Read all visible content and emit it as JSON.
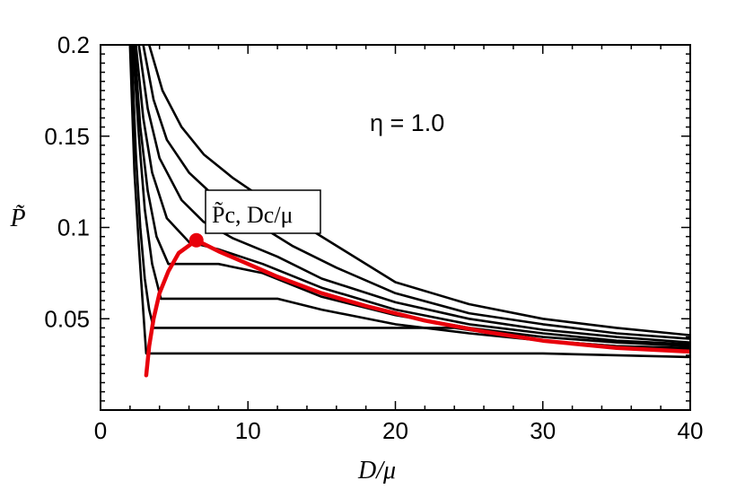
{
  "chart_data": {
    "type": "line",
    "title": "",
    "xlabel": "D/μ",
    "ylabel": "P̃",
    "xlim": [
      0,
      40
    ],
    "ylim": [
      0,
      0.2
    ],
    "x_ticks": [
      "0",
      "10",
      "20",
      "30",
      "40"
    ],
    "y_ticks": [
      "0.05",
      "0.1",
      "0.15",
      "0.2"
    ],
    "annotation": "η = 1.0",
    "callout": {
      "label": "P̃c, Dc/μ",
      "x": 6.5,
      "y": 0.093
    },
    "grid": false,
    "colors": {
      "isotherms": "#000000",
      "coexistence": "#e8000b"
    },
    "isotherms": [
      {
        "values": [
          [
            2.0,
            0.2
          ],
          [
            2.3,
            0.13
          ],
          [
            2.6,
            0.09
          ],
          [
            2.85,
            0.06
          ],
          [
            3.0,
            0.042
          ],
          [
            3.1,
            0.031
          ],
          [
            4,
            0.031
          ],
          [
            8,
            0.031
          ],
          [
            12,
            0.031
          ],
          [
            20,
            0.031
          ],
          [
            30,
            0.031
          ],
          [
            40,
            0.029
          ]
        ]
      },
      {
        "values": [
          [
            2.1,
            0.2
          ],
          [
            2.4,
            0.14
          ],
          [
            2.7,
            0.1
          ],
          [
            3.0,
            0.072
          ],
          [
            3.3,
            0.055
          ],
          [
            3.6,
            0.045
          ],
          [
            6,
            0.045
          ],
          [
            15,
            0.045
          ],
          [
            24,
            0.045
          ],
          [
            30,
            0.038
          ],
          [
            35,
            0.035
          ],
          [
            40,
            0.033
          ]
        ]
      },
      {
        "values": [
          [
            2.2,
            0.2
          ],
          [
            2.6,
            0.15
          ],
          [
            3.0,
            0.11
          ],
          [
            3.5,
            0.08
          ],
          [
            4.1,
            0.061
          ],
          [
            8,
            0.061
          ],
          [
            12,
            0.061
          ],
          [
            15,
            0.055
          ],
          [
            20,
            0.047
          ],
          [
            25,
            0.042
          ],
          [
            30,
            0.038
          ],
          [
            35,
            0.035
          ],
          [
            40,
            0.034
          ]
        ]
      },
      {
        "values": [
          [
            2.3,
            0.2
          ],
          [
            2.7,
            0.155
          ],
          [
            3.2,
            0.12
          ],
          [
            3.8,
            0.095
          ],
          [
            4.6,
            0.08
          ],
          [
            8,
            0.08
          ],
          [
            11,
            0.075
          ],
          [
            15,
            0.062
          ],
          [
            20,
            0.052
          ],
          [
            25,
            0.045
          ],
          [
            30,
            0.04
          ],
          [
            35,
            0.037
          ],
          [
            40,
            0.035
          ]
        ]
      },
      {
        "values": [
          [
            2.4,
            0.2
          ],
          [
            2.9,
            0.16
          ],
          [
            3.5,
            0.13
          ],
          [
            4.5,
            0.105
          ],
          [
            6,
            0.092
          ],
          [
            8,
            0.088
          ],
          [
            11,
            0.08
          ],
          [
            15,
            0.067
          ],
          [
            20,
            0.055
          ],
          [
            25,
            0.047
          ],
          [
            30,
            0.042
          ],
          [
            35,
            0.038
          ],
          [
            40,
            0.036
          ]
        ]
      },
      {
        "values": [
          [
            2.6,
            0.2
          ],
          [
            3.2,
            0.165
          ],
          [
            4,
            0.138
          ],
          [
            5.5,
            0.115
          ],
          [
            7,
            0.103
          ],
          [
            9,
            0.094
          ],
          [
            12,
            0.084
          ],
          [
            15,
            0.072
          ],
          [
            20,
            0.059
          ],
          [
            25,
            0.05
          ],
          [
            30,
            0.044
          ],
          [
            35,
            0.04
          ],
          [
            40,
            0.037
          ]
        ]
      },
      {
        "values": [
          [
            2.9,
            0.2
          ],
          [
            3.6,
            0.17
          ],
          [
            4.5,
            0.148
          ],
          [
            6,
            0.13
          ],
          [
            8,
            0.115
          ],
          [
            10,
            0.105
          ],
          [
            13,
            0.09
          ],
          [
            16,
            0.078
          ],
          [
            20,
            0.064
          ],
          [
            25,
            0.053
          ],
          [
            30,
            0.047
          ],
          [
            35,
            0.042
          ],
          [
            40,
            0.039
          ]
        ]
      },
      {
        "values": [
          [
            3.3,
            0.2
          ],
          [
            4.2,
            0.175
          ],
          [
            5.5,
            0.155
          ],
          [
            7,
            0.14
          ],
          [
            9,
            0.127
          ],
          [
            11,
            0.116
          ],
          [
            14,
            0.1
          ],
          [
            17,
            0.085
          ],
          [
            20,
            0.07
          ],
          [
            25,
            0.058
          ],
          [
            30,
            0.05
          ],
          [
            35,
            0.045
          ],
          [
            40,
            0.041
          ]
        ]
      }
    ],
    "coexistence": {
      "values": [
        [
          3.1,
          0.019
        ],
        [
          3.3,
          0.035
        ],
        [
          3.6,
          0.05
        ],
        [
          4.0,
          0.064
        ],
        [
          4.6,
          0.076
        ],
        [
          5.3,
          0.086
        ],
        [
          6.5,
          0.093
        ],
        [
          8,
          0.087
        ],
        [
          10,
          0.08
        ],
        [
          12,
          0.073
        ],
        [
          15,
          0.064
        ],
        [
          18,
          0.057
        ],
        [
          22,
          0.049
        ],
        [
          26,
          0.043
        ],
        [
          30,
          0.038
        ],
        [
          35,
          0.034
        ],
        [
          40,
          0.032
        ]
      ]
    }
  }
}
